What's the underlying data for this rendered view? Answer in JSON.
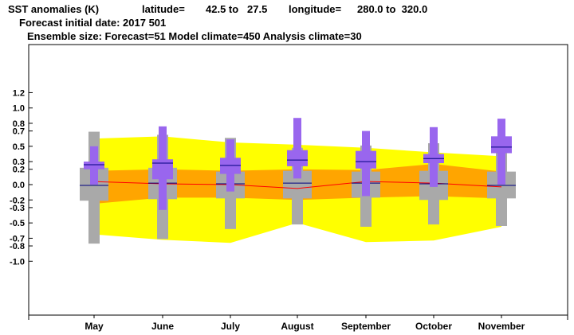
{
  "header": {
    "title": "SST anomalies (K)",
    "lat_label": "latitude=",
    "lat_range": "42.5 to   27.5",
    "lon_label": "longitude=",
    "lon_range": "280.0 to  320.0",
    "forecast_date": "Forecast initial date: 2017 501",
    "ensemble": "Ensemble size: Forecast=51 Model climate=450 Analysis climate=30"
  },
  "colors": {
    "outer_band": "#ffff00",
    "inner_band": "#ffa500",
    "climate_box": "#a9a9a9",
    "forecast_box": "#9966ee",
    "median_line": "#000080",
    "mean_line": "#ff0000"
  },
  "chart_data": {
    "type": "box",
    "title": "SST anomalies (K)",
    "categories": [
      "May",
      "June",
      "July",
      "August",
      "September",
      "October",
      "November"
    ],
    "ylim": [
      -1.2,
      1.25
    ],
    "yticks": [
      "1.2",
      "1.0",
      "0.8",
      "0.7",
      "0.5",
      "0.3",
      "0.2",
      "0.0",
      "-0.2",
      "-0.3",
      "-0.5",
      "-0.7",
      "-0.8",
      "-1.0"
    ],
    "ytick_values": [
      1.2,
      1.0,
      0.8,
      0.7,
      0.5,
      0.3,
      0.2,
      0.0,
      -0.2,
      -0.3,
      -0.5,
      -0.7,
      -0.8,
      -1.0
    ],
    "climate_band_outer": {
      "upper": [
        0.6,
        0.63,
        0.55,
        0.52,
        0.48,
        0.42,
        0.37
      ],
      "lower": [
        -0.65,
        -0.72,
        -0.76,
        -0.5,
        -0.75,
        -0.73,
        -0.55
      ]
    },
    "climate_band_inner": {
      "upper": [
        0.18,
        0.2,
        0.18,
        0.2,
        0.19,
        0.27,
        0.17
      ],
      "lower": [
        -0.25,
        -0.17,
        -0.17,
        -0.2,
        -0.17,
        -0.15,
        -0.18
      ]
    },
    "mean_line": [
      0.04,
      0.01,
      0.0,
      -0.05,
      0.04,
      0.02,
      -0.03
    ],
    "model_climate": [
      {
        "whisker_low": -0.77,
        "box_low": -0.21,
        "median": -0.01,
        "box_high": 0.22,
        "whisker_high": 0.69
      },
      {
        "whisker_low": -0.71,
        "box_low": -0.19,
        "median": 0.02,
        "box_high": 0.22,
        "whisker_high": 0.65
      },
      {
        "whisker_low": -0.58,
        "box_low": -0.18,
        "median": 0.01,
        "box_high": 0.17,
        "whisker_high": 0.61
      },
      {
        "whisker_low": -0.52,
        "box_low": -0.18,
        "median": 0.02,
        "box_high": 0.18,
        "whisker_high": 0.48
      },
      {
        "whisker_low": -0.55,
        "box_low": -0.17,
        "median": 0.02,
        "box_high": 0.17,
        "whisker_high": 0.51
      },
      {
        "whisker_low": -0.52,
        "box_low": -0.2,
        "median": 0.01,
        "box_high": 0.18,
        "whisker_high": 0.54
      },
      {
        "whisker_low": -0.54,
        "box_low": -0.18,
        "median": -0.01,
        "box_high": 0.17,
        "whisker_high": 0.41
      }
    ],
    "forecast": [
      {
        "whisker_low": 0.0,
        "box_low": 0.2,
        "median": 0.26,
        "box_high": 0.3,
        "whisker_high": 0.5
      },
      {
        "whisker_low": -0.33,
        "box_low": 0.07,
        "median": 0.28,
        "box_high": 0.33,
        "whisker_high": 0.76
      },
      {
        "whisker_low": -0.09,
        "box_low": 0.14,
        "median": 0.25,
        "box_high": 0.35,
        "whisker_high": 0.59
      },
      {
        "whisker_low": 0.08,
        "box_low": 0.24,
        "median": 0.32,
        "box_high": 0.45,
        "whisker_high": 0.87
      },
      {
        "whisker_low": -0.15,
        "box_low": 0.21,
        "median": 0.3,
        "box_high": 0.44,
        "whisker_high": 0.7
      },
      {
        "whisker_low": -0.03,
        "box_low": 0.28,
        "median": 0.34,
        "box_high": 0.4,
        "whisker_high": 0.75
      },
      {
        "whisker_low": 0.0,
        "box_low": 0.41,
        "median": 0.49,
        "box_high": 0.63,
        "whisker_high": 0.86
      }
    ]
  }
}
